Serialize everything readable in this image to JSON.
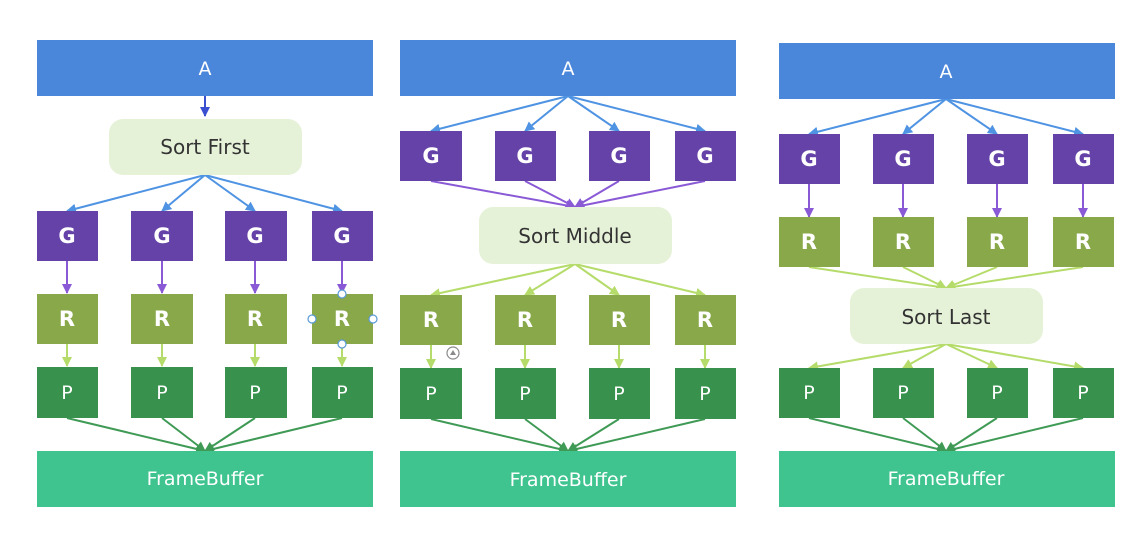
{
  "colors": {
    "a_box": "#4a86d9",
    "g_box": "#6442a8",
    "r_box": "#88a84a",
    "p_box": "#38924e",
    "framebuffer": "#3fc490",
    "sort_box": "#e6f2d8",
    "arrow_a_to_g": "#4f93e3",
    "arrow_g": "#8a5ad6",
    "arrow_a_to_sort": "#3b4fd1",
    "arrow_r": "#b5dc6a",
    "arrow_p": "#3f9a55",
    "handle_stroke": "#5a9ad6"
  },
  "icons": {
    "selection_handle": "circle-handle-icon",
    "connector_plus": "connector-circle-icon"
  },
  "panels": [
    {
      "id": "sort-first",
      "a_label": "A",
      "sort_label": "Sort First",
      "g_labels": [
        "G",
        "G",
        "G",
        "G"
      ],
      "r_labels": [
        "R",
        "R",
        "R",
        "R"
      ],
      "p_labels": [
        "P",
        "P",
        "P",
        "P"
      ],
      "framebuffer_label": "FrameBuffer"
    },
    {
      "id": "sort-middle",
      "a_label": "A",
      "sort_label": "Sort Middle",
      "g_labels": [
        "G",
        "G",
        "G",
        "G"
      ],
      "r_labels": [
        "R",
        "R",
        "R",
        "R"
      ],
      "p_labels": [
        "P",
        "P",
        "P",
        "P"
      ],
      "framebuffer_label": "FrameBuffer"
    },
    {
      "id": "sort-last",
      "a_label": "A",
      "sort_label": "Sort Last",
      "g_labels": [
        "G",
        "G",
        "G",
        "G"
      ],
      "r_labels": [
        "R",
        "R",
        "R",
        "R"
      ],
      "p_labels": [
        "P",
        "P",
        "P",
        "P"
      ],
      "framebuffer_label": "FrameBuffer"
    }
  ]
}
